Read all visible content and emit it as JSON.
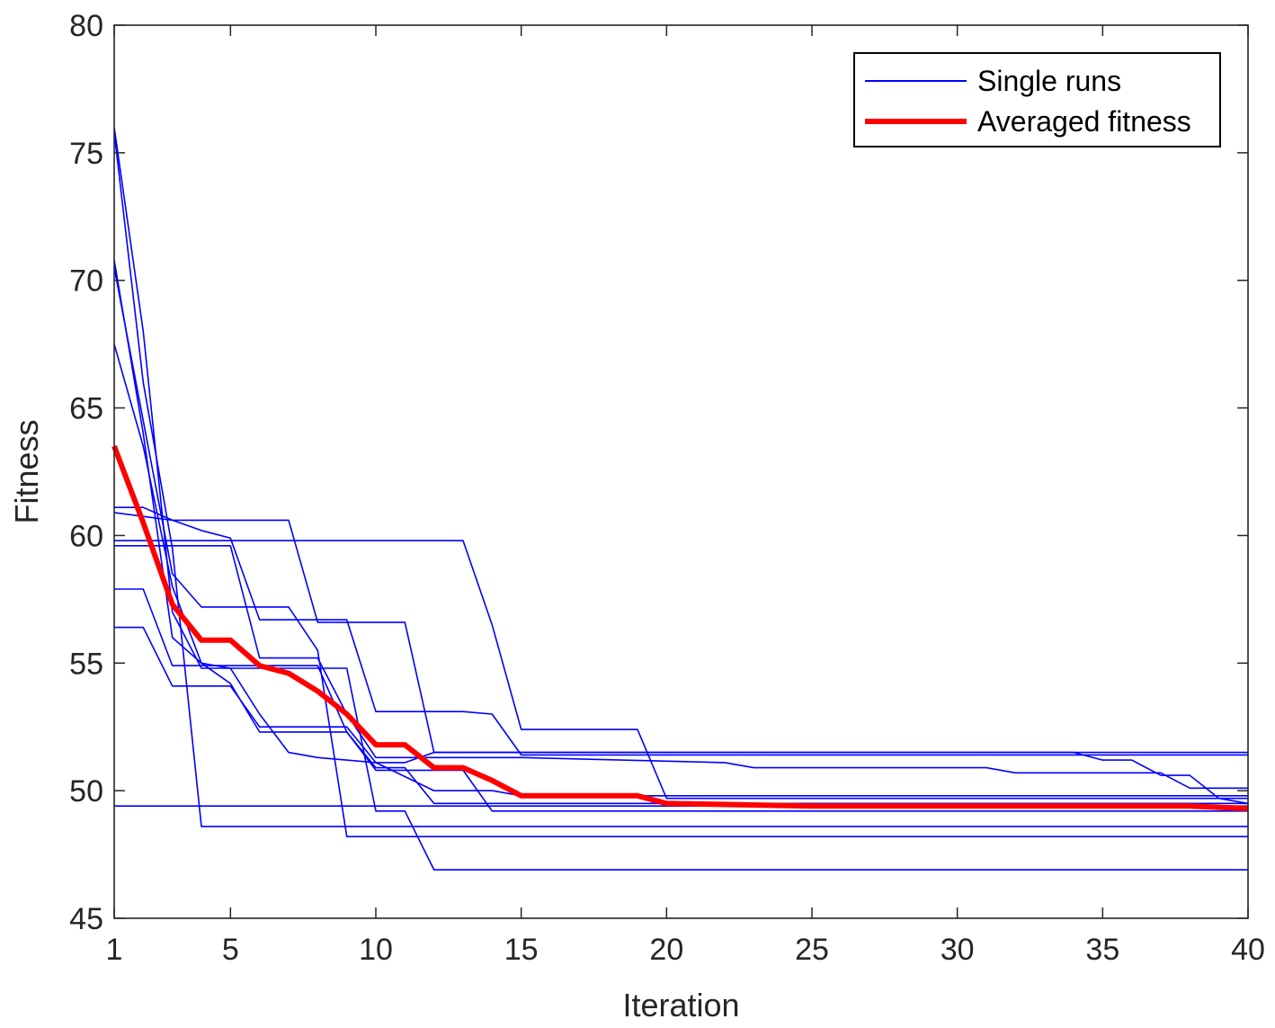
{
  "chart_data": {
    "type": "line",
    "xlabel": "Iteration",
    "ylabel": "Fitness",
    "xlim": [
      1,
      40
    ],
    "ylim": [
      45,
      80
    ],
    "xticks": [
      1,
      5,
      10,
      15,
      20,
      25,
      30,
      35,
      40
    ],
    "yticks": [
      45,
      50,
      55,
      60,
      65,
      70,
      75,
      80
    ],
    "legend": {
      "position": "top-right",
      "entries": [
        {
          "label": "Single runs",
          "color": "#0000ff",
          "style": "thin"
        },
        {
          "label": "Averaged fitness",
          "color": "#ff0000",
          "style": "thick"
        }
      ]
    },
    "series": [
      {
        "name": "Single runs",
        "color": "#0000ff",
        "points": [
          [
            1,
            76.0
          ],
          [
            2,
            68.0
          ],
          [
            3,
            57.0
          ],
          [
            4,
            54.8
          ],
          [
            9,
            54.8
          ],
          [
            10,
            49.2
          ],
          [
            11,
            49.2
          ],
          [
            12,
            46.9
          ],
          [
            40,
            46.9
          ]
        ]
      },
      {
        "name": "Single runs",
        "color": "#0000ff",
        "points": [
          [
            1,
            75.8
          ],
          [
            2,
            66.0
          ],
          [
            3,
            59.5
          ],
          [
            4,
            48.6
          ],
          [
            40,
            48.6
          ]
        ]
      },
      {
        "name": "Single runs",
        "color": "#0000ff",
        "points": [
          [
            1,
            70.8
          ],
          [
            2,
            64.0
          ],
          [
            3,
            56.0
          ],
          [
            4,
            55.0
          ],
          [
            5,
            54.8
          ],
          [
            6,
            53.0
          ],
          [
            7,
            51.5
          ],
          [
            8,
            51.3
          ],
          [
            10,
            51.1
          ],
          [
            12,
            50.0
          ],
          [
            14,
            50.0
          ],
          [
            15,
            49.8
          ],
          [
            40,
            49.8
          ]
        ]
      },
      {
        "name": "Single runs",
        "color": "#0000ff",
        "points": [
          [
            1,
            70.5
          ],
          [
            2,
            64.5
          ],
          [
            3,
            58.5
          ],
          [
            4,
            57.2
          ],
          [
            7,
            57.2
          ],
          [
            8,
            55.5
          ],
          [
            9,
            48.2
          ],
          [
            40,
            48.2
          ]
        ]
      },
      {
        "name": "Single runs",
        "color": "#0000ff",
        "points": [
          [
            1,
            67.5
          ],
          [
            2,
            63.5
          ],
          [
            3,
            58.0
          ],
          [
            4,
            55.0
          ],
          [
            5,
            54.2
          ],
          [
            6,
            52.3
          ],
          [
            7,
            52.3
          ],
          [
            9,
            52.3
          ],
          [
            10,
            50.9
          ],
          [
            11,
            50.9
          ],
          [
            12,
            49.5
          ],
          [
            40,
            49.5
          ]
        ]
      },
      {
        "name": "Single runs",
        "color": "#0000ff",
        "points": [
          [
            1,
            61.1
          ],
          [
            2,
            61.1
          ],
          [
            3,
            60.6
          ],
          [
            4,
            60.2
          ],
          [
            5,
            59.9
          ],
          [
            6,
            56.7
          ],
          [
            9,
            56.7
          ],
          [
            10,
            53.1
          ],
          [
            12,
            53.1
          ],
          [
            13,
            53.1
          ],
          [
            14,
            53.0
          ],
          [
            15,
            51.4
          ],
          [
            40,
            51.4
          ]
        ]
      },
      {
        "name": "Single runs",
        "color": "#0000ff",
        "points": [
          [
            1,
            60.9
          ],
          [
            3,
            60.6
          ],
          [
            7,
            60.6
          ],
          [
            8,
            56.6
          ],
          [
            11,
            56.6
          ],
          [
            12,
            51.5
          ],
          [
            40,
            51.5
          ]
        ]
      },
      {
        "name": "Single runs",
        "color": "#0000ff",
        "points": [
          [
            1,
            59.8
          ],
          [
            13,
            59.8
          ],
          [
            14,
            56.5
          ],
          [
            15,
            52.4
          ],
          [
            19,
            52.4
          ],
          [
            20,
            49.7
          ],
          [
            40,
            49.7
          ]
        ]
      },
      {
        "name": "Single runs",
        "color": "#0000ff",
        "points": [
          [
            1,
            59.6
          ],
          [
            5,
            59.6
          ],
          [
            6,
            55.2
          ],
          [
            8,
            55.2
          ],
          [
            9,
            53.0
          ],
          [
            10,
            51.3
          ],
          [
            15,
            51.3
          ],
          [
            22,
            51.1
          ],
          [
            23,
            50.9
          ],
          [
            31,
            50.9
          ],
          [
            32,
            50.7
          ],
          [
            37,
            50.7
          ],
          [
            38,
            50.1
          ],
          [
            40,
            50.1
          ]
        ]
      },
      {
        "name": "Single runs",
        "color": "#0000ff",
        "points": [
          [
            1,
            57.9
          ],
          [
            2,
            57.9
          ],
          [
            3,
            54.9
          ],
          [
            8,
            54.9
          ],
          [
            9,
            52.3
          ],
          [
            10,
            50.8
          ],
          [
            13,
            50.8
          ],
          [
            14,
            49.2
          ],
          [
            40,
            49.2
          ]
        ]
      },
      {
        "name": "Single runs",
        "color": "#0000ff",
        "points": [
          [
            1,
            56.4
          ],
          [
            2,
            56.4
          ],
          [
            3,
            54.1
          ],
          [
            5,
            54.1
          ],
          [
            6,
            52.5
          ],
          [
            9,
            52.5
          ],
          [
            10,
            51.1
          ],
          [
            11,
            51.1
          ],
          [
            12,
            51.5
          ],
          [
            34,
            51.5
          ],
          [
            35,
            51.2
          ],
          [
            36,
            51.2
          ],
          [
            37,
            50.6
          ],
          [
            38,
            50.6
          ],
          [
            39,
            49.7
          ],
          [
            40,
            49.5
          ]
        ]
      },
      {
        "name": "Single runs",
        "color": "#0000ff",
        "points": [
          [
            1,
            49.4
          ],
          [
            40,
            49.4
          ]
        ]
      },
      {
        "name": "Averaged fitness",
        "color": "#ff0000",
        "width": "thick",
        "points": [
          [
            1,
            63.5
          ],
          [
            2,
            60.5
          ],
          [
            3,
            57.3
          ],
          [
            4,
            55.9
          ],
          [
            5,
            55.9
          ],
          [
            6,
            54.9
          ],
          [
            7,
            54.6
          ],
          [
            8,
            53.9
          ],
          [
            9,
            53.0
          ],
          [
            10,
            51.8
          ],
          [
            11,
            51.8
          ],
          [
            12,
            50.9
          ],
          [
            13,
            50.9
          ],
          [
            14,
            50.4
          ],
          [
            15,
            49.8
          ],
          [
            16,
            49.8
          ],
          [
            17,
            49.8
          ],
          [
            18,
            49.8
          ],
          [
            19,
            49.8
          ],
          [
            20,
            49.5
          ],
          [
            25,
            49.4
          ],
          [
            30,
            49.4
          ],
          [
            35,
            49.4
          ],
          [
            38,
            49.4
          ],
          [
            40,
            49.3
          ]
        ]
      }
    ]
  }
}
